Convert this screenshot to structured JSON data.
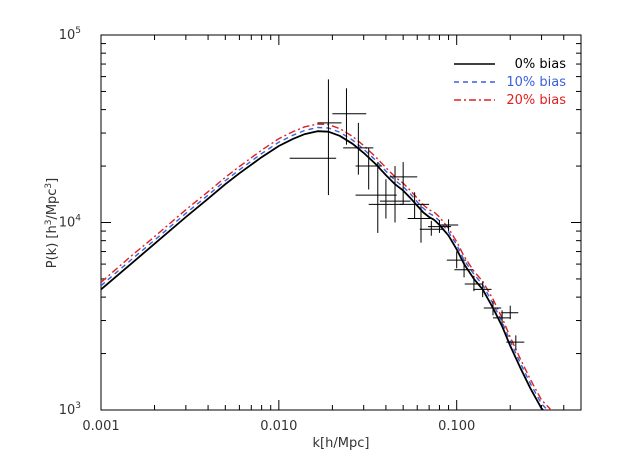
{
  "chart_data": {
    "type": "line",
    "title": "",
    "xlabel": "k[h/Mpc]",
    "ylabel": {
      "prefix": "P(k) [h",
      "sup1": "3",
      "mid": "/Mpc",
      "sup2": "3",
      "suffix": "]"
    },
    "x_scale": "log",
    "y_scale": "log",
    "xlim": [
      0.001,
      0.5
    ],
    "ylim": [
      1000,
      100000
    ],
    "x_ticks": [
      {
        "value": 0.001,
        "label": "0.001"
      },
      {
        "value": 0.01,
        "label": "0.010"
      },
      {
        "value": 0.1,
        "label": "0.100"
      }
    ],
    "y_ticks": [
      {
        "value": 1000,
        "base": "10",
        "exp": "3"
      },
      {
        "value": 10000,
        "base": "10",
        "exp": "4"
      },
      {
        "value": 100000,
        "base": "10",
        "exp": "5"
      }
    ],
    "grid": false,
    "legend_position": "top-right",
    "series": [
      {
        "name": "0% bias",
        "color": "#000000",
        "dash": "solid",
        "x": [
          0.001,
          0.0015,
          0.002,
          0.003,
          0.004,
          0.005,
          0.006,
          0.008,
          0.01,
          0.012,
          0.014,
          0.0165,
          0.019,
          0.022,
          0.026,
          0.03,
          0.035,
          0.04,
          0.045,
          0.05,
          0.055,
          0.06,
          0.065,
          0.07,
          0.075,
          0.08,
          0.09,
          0.1,
          0.11,
          0.125,
          0.14,
          0.16,
          0.18,
          0.2,
          0.23,
          0.26,
          0.3,
          0.33
        ],
        "y": [
          4400,
          6100,
          7700,
          10700,
          13400,
          16000,
          18300,
          22300,
          25600,
          27900,
          29600,
          30700,
          30500,
          29000,
          26300,
          23500,
          20500,
          17900,
          16000,
          14800,
          13500,
          12300,
          11300,
          10700,
          10300,
          9700,
          8500,
          7200,
          6000,
          5000,
          4400,
          3500,
          2800,
          2200,
          1650,
          1300,
          1020,
          920
        ]
      },
      {
        "name": "10% bias",
        "color": "#3a5fe0",
        "dash": "5,4",
        "x": [
          0.001,
          0.0015,
          0.002,
          0.003,
          0.004,
          0.005,
          0.006,
          0.008,
          0.01,
          0.012,
          0.014,
          0.0165,
          0.019,
          0.022,
          0.026,
          0.03,
          0.035,
          0.04,
          0.045,
          0.05,
          0.055,
          0.06,
          0.065,
          0.07,
          0.075,
          0.08,
          0.09,
          0.1,
          0.11,
          0.125,
          0.14,
          0.16,
          0.18,
          0.2,
          0.23,
          0.26,
          0.3,
          0.33
        ],
        "y": [
          4600,
          6400,
          8050,
          11200,
          14000,
          16700,
          19100,
          23300,
          26800,
          29200,
          31000,
          32100,
          31900,
          30300,
          27500,
          24600,
          21500,
          18800,
          16800,
          15500,
          14200,
          12900,
          11900,
          11200,
          10800,
          10200,
          8900,
          7600,
          6300,
          5300,
          4650,
          3700,
          2950,
          2330,
          1750,
          1380,
          1080,
          980
        ]
      },
      {
        "name": "20% bias",
        "color": "#e02020",
        "dash": "7,3,2,3",
        "x": [
          0.001,
          0.0015,
          0.002,
          0.003,
          0.004,
          0.005,
          0.006,
          0.008,
          0.01,
          0.012,
          0.014,
          0.0165,
          0.019,
          0.022,
          0.026,
          0.03,
          0.035,
          0.04,
          0.045,
          0.05,
          0.055,
          0.06,
          0.065,
          0.07,
          0.075,
          0.08,
          0.09,
          0.1,
          0.11,
          0.125,
          0.14,
          0.16,
          0.18,
          0.2,
          0.23,
          0.26,
          0.3,
          0.33,
          0.35
        ],
        "y": [
          4800,
          6700,
          8400,
          11700,
          14600,
          17400,
          19900,
          24300,
          28000,
          30500,
          32400,
          33500,
          33300,
          31700,
          28800,
          25700,
          22400,
          19600,
          17500,
          16200,
          14800,
          13500,
          12400,
          11700,
          11300,
          10700,
          9300,
          7900,
          6600,
          5500,
          4850,
          3900,
          3100,
          2450,
          1840,
          1450,
          1130,
          1030,
          960
        ]
      }
    ],
    "measurements": {
      "color": "#000000",
      "points": [
        {
          "x": 0.0155,
          "xerr": [
            0.0115,
            0.021
          ],
          "y": 22000,
          "yerr": [
            22000,
            22000
          ]
        },
        {
          "x": 0.019,
          "xerr": [
            0.0165,
            0.0225
          ],
          "y": 34000,
          "yerr": [
            14000,
            58000
          ]
        },
        {
          "x": 0.024,
          "xerr": [
            0.02,
            0.031
          ],
          "y": 38000,
          "yerr": [
            26000,
            52000
          ]
        },
        {
          "x": 0.028,
          "xerr": [
            0.023,
            0.034
          ],
          "y": 25000,
          "yerr": [
            18000,
            34000
          ]
        },
        {
          "x": 0.032,
          "xerr": [
            0.027,
            0.038
          ],
          "y": 20000,
          "yerr": [
            15000,
            25000
          ]
        },
        {
          "x": 0.036,
          "xerr": [
            0.027,
            0.046
          ],
          "y": 14000,
          "yerr": [
            8800,
            21000
          ]
        },
        {
          "x": 0.04,
          "xerr": [
            0.032,
            0.05
          ],
          "y": 12500,
          "yerr": [
            10500,
            17000
          ]
        },
        {
          "x": 0.045,
          "xerr": [
            0.037,
            0.055
          ],
          "y": 13000,
          "yerr": [
            10000,
            20000
          ]
        },
        {
          "x": 0.05,
          "xerr": [
            0.042,
            0.06
          ],
          "y": 17500,
          "yerr": [
            12500,
            21000
          ]
        },
        {
          "x": 0.058,
          "xerr": [
            0.048,
            0.07
          ],
          "y": 12500,
          "yerr": [
            10500,
            14500
          ]
        },
        {
          "x": 0.063,
          "xerr": [
            0.053,
            0.074
          ],
          "y": 10500,
          "yerr": [
            7800,
            12500
          ]
        },
        {
          "x": 0.072,
          "xerr": [
            0.062,
            0.084
          ],
          "y": 9200,
          "yerr": [
            8500,
            10200
          ]
        },
        {
          "x": 0.08,
          "xerr": [
            0.069,
            0.093
          ],
          "y": 9500,
          "yerr": [
            8800,
            10300
          ]
        },
        {
          "x": 0.09,
          "xerr": [
            0.079,
            0.102
          ],
          "y": 9700,
          "yerr": [
            9000,
            10400
          ]
        },
        {
          "x": 0.1,
          "xerr": [
            0.088,
            0.113
          ],
          "y": 6300,
          "yerr": [
            5700,
            7000
          ]
        },
        {
          "x": 0.11,
          "xerr": [
            0.097,
            0.124
          ],
          "y": 5600,
          "yerr": [
            5100,
            6200
          ]
        },
        {
          "x": 0.125,
          "xerr": [
            0.111,
            0.14
          ],
          "y": 4700,
          "yerr": [
            4300,
            5200
          ]
        },
        {
          "x": 0.14,
          "xerr": [
            0.124,
            0.157
          ],
          "y": 4400,
          "yerr": [
            4000,
            4850
          ]
        },
        {
          "x": 0.16,
          "xerr": [
            0.142,
            0.178
          ],
          "y": 3500,
          "yerr": [
            3200,
            3800
          ]
        },
        {
          "x": 0.18,
          "xerr": [
            0.16,
            0.2
          ],
          "y": 3100,
          "yerr": [
            2850,
            3400
          ]
        },
        {
          "x": 0.2,
          "xerr": [
            0.178,
            0.222
          ],
          "y": 3300,
          "yerr": [
            3050,
            3600
          ]
        },
        {
          "x": 0.215,
          "xerr": [
            0.19,
            0.24
          ],
          "y": 2300,
          "yerr": [
            2100,
            2500
          ]
        }
      ]
    }
  }
}
